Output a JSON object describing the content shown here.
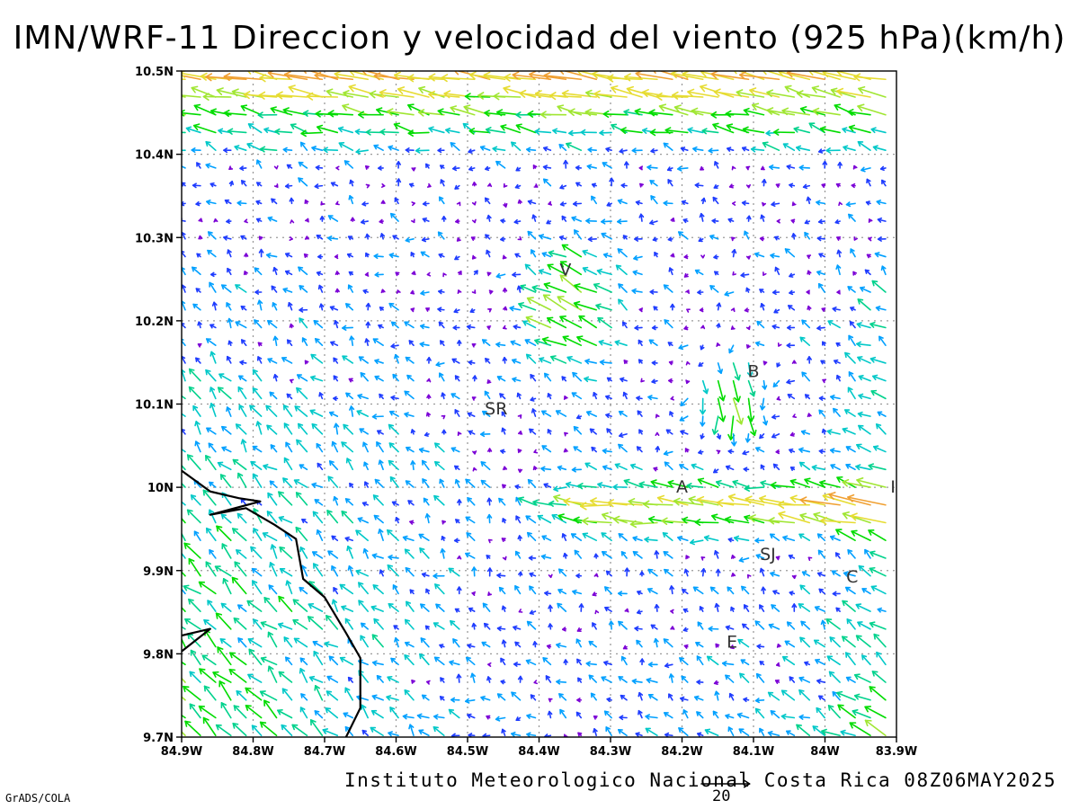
{
  "title": "IMN/WRF-11 Direccion y velocidad del viento (925 hPa)(km/h)",
  "footer": "Instituto Meteorologico Nacional Costa Rica 08Z06MAY2025",
  "credit": "GrADS/COLA",
  "scale": {
    "label": "20",
    "reference_value": 20
  },
  "axes": {
    "x_range": [
      -84.9,
      -83.9
    ],
    "y_range": [
      9.7,
      10.5
    ],
    "x_ticks": [
      {
        "value": -84.9,
        "label": "84.9W"
      },
      {
        "value": -84.8,
        "label": "84.8W"
      },
      {
        "value": -84.7,
        "label": "84.7W"
      },
      {
        "value": -84.6,
        "label": "84.6W"
      },
      {
        "value": -84.5,
        "label": "84.5W"
      },
      {
        "value": -84.4,
        "label": "84.4W"
      },
      {
        "value": -84.3,
        "label": "84.3W"
      },
      {
        "value": -84.2,
        "label": "84.2W"
      },
      {
        "value": -84.1,
        "label": "84.1W"
      },
      {
        "value": -84.0,
        "label": "84W"
      },
      {
        "value": -83.9,
        "label": "83.9W"
      }
    ],
    "y_ticks": [
      {
        "value": 9.7,
        "label": "9.7N"
      },
      {
        "value": 9.8,
        "label": "9.8N"
      },
      {
        "value": 9.9,
        "label": "9.9N"
      },
      {
        "value": 10.0,
        "label": "10N"
      },
      {
        "value": 10.1,
        "label": "10.1N"
      },
      {
        "value": 10.2,
        "label": "10.2N"
      },
      {
        "value": 10.3,
        "label": "10.3N"
      },
      {
        "value": 10.4,
        "label": "10.4N"
      },
      {
        "value": 10.5,
        "label": "10.5N"
      }
    ],
    "grid": true
  },
  "places": [
    {
      "label": "V",
      "lon": -84.363,
      "lat": 10.262
    },
    {
      "label": "B",
      "lon": -84.1,
      "lat": 10.14
    },
    {
      "label": "SR",
      "lon": -84.46,
      "lat": 10.095
    },
    {
      "label": "A",
      "lon": -84.2,
      "lat": 10.001
    },
    {
      "label": "I",
      "lon": -83.905,
      "lat": 10.001
    },
    {
      "label": "SJ",
      "lon": -84.08,
      "lat": 9.92
    },
    {
      "label": "C",
      "lon": -83.962,
      "lat": 9.893
    },
    {
      "label": "E",
      "lon": -84.13,
      "lat": 9.815
    }
  ],
  "coastline": [
    [
      -84.9,
      10.02
    ],
    [
      -84.86,
      9.995
    ],
    [
      -84.82,
      9.987
    ],
    [
      -84.79,
      9.983
    ],
    [
      -84.86,
      9.967
    ],
    [
      -84.81,
      9.975
    ],
    [
      -84.77,
      9.955
    ],
    [
      -84.74,
      9.938
    ],
    [
      -84.73,
      9.89
    ],
    [
      -84.7,
      9.868
    ],
    [
      -84.67,
      9.825
    ],
    [
      -84.65,
      9.795
    ],
    [
      -84.65,
      9.735
    ],
    [
      -84.67,
      9.7
    ]
  ],
  "coastline_hook": [
    [
      -84.9,
      9.803
    ],
    [
      -84.86,
      9.83
    ],
    [
      -84.885,
      9.825
    ],
    [
      -84.9,
      9.822
    ]
  ],
  "colors": {
    "speed_bins": [
      {
        "max": 3,
        "color": "#7b00d6"
      },
      {
        "max": 6,
        "color": "#1e3cff"
      },
      {
        "max": 9,
        "color": "#00a0ff"
      },
      {
        "max": 12,
        "color": "#00c8c8"
      },
      {
        "max": 15,
        "color": "#00d28c"
      },
      {
        "max": 19,
        "color": "#00dc00"
      },
      {
        "max": 23,
        "color": "#a0e632"
      },
      {
        "max": 28,
        "color": "#e6dc32"
      },
      {
        "max": 34,
        "color": "#f0a032"
      },
      {
        "max": 999,
        "color": "#e62828"
      }
    ],
    "coast": "#000000",
    "grid": "#9a9a9a"
  }
}
